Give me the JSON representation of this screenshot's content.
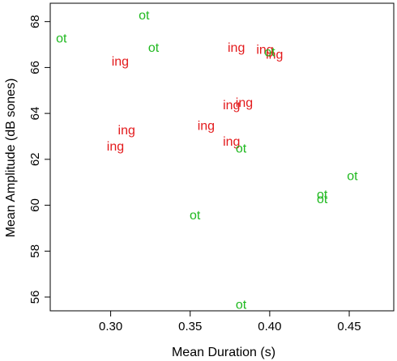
{
  "chart_data": {
    "type": "scatter",
    "title": "",
    "xlabel": "Mean Duration (s)",
    "ylabel": "Mean Amplitude (dB sones)",
    "xlim": [
      0.262,
      0.478
    ],
    "ylim": [
      55.4,
      68.8
    ],
    "xticks": [
      0.3,
      0.35,
      0.4,
      0.45
    ],
    "xtick_labels": [
      "0.30",
      "0.35",
      "0.40",
      "0.45"
    ],
    "yticks": [
      56,
      58,
      60,
      62,
      64,
      66,
      68
    ],
    "ytick_labels": [
      "56",
      "58",
      "60",
      "62",
      "64",
      "66",
      "68"
    ],
    "grid": false,
    "legend": "none",
    "series": [
      {
        "name": "ing",
        "color": "#e31a1c",
        "label": "ing",
        "points": [
          {
            "x": 0.306,
            "y": 66.3
          },
          {
            "x": 0.31,
            "y": 63.3
          },
          {
            "x": 0.303,
            "y": 62.6
          },
          {
            "x": 0.36,
            "y": 63.5
          },
          {
            "x": 0.376,
            "y": 64.4
          },
          {
            "x": 0.384,
            "y": 64.5
          },
          {
            "x": 0.376,
            "y": 62.8
          },
          {
            "x": 0.379,
            "y": 66.9
          },
          {
            "x": 0.397,
            "y": 66.8
          },
          {
            "x": 0.403,
            "y": 66.6
          }
        ]
      },
      {
        "name": "ot",
        "color": "#1fb91f",
        "label": "ot",
        "points": [
          {
            "x": 0.269,
            "y": 67.3
          },
          {
            "x": 0.321,
            "y": 68.3
          },
          {
            "x": 0.327,
            "y": 66.9
          },
          {
            "x": 0.4,
            "y": 66.7
          },
          {
            "x": 0.382,
            "y": 62.5
          },
          {
            "x": 0.452,
            "y": 61.3
          },
          {
            "x": 0.433,
            "y": 60.5
          },
          {
            "x": 0.433,
            "y": 60.3
          },
          {
            "x": 0.353,
            "y": 59.6
          },
          {
            "x": 0.382,
            "y": 55.7
          }
        ]
      }
    ]
  }
}
